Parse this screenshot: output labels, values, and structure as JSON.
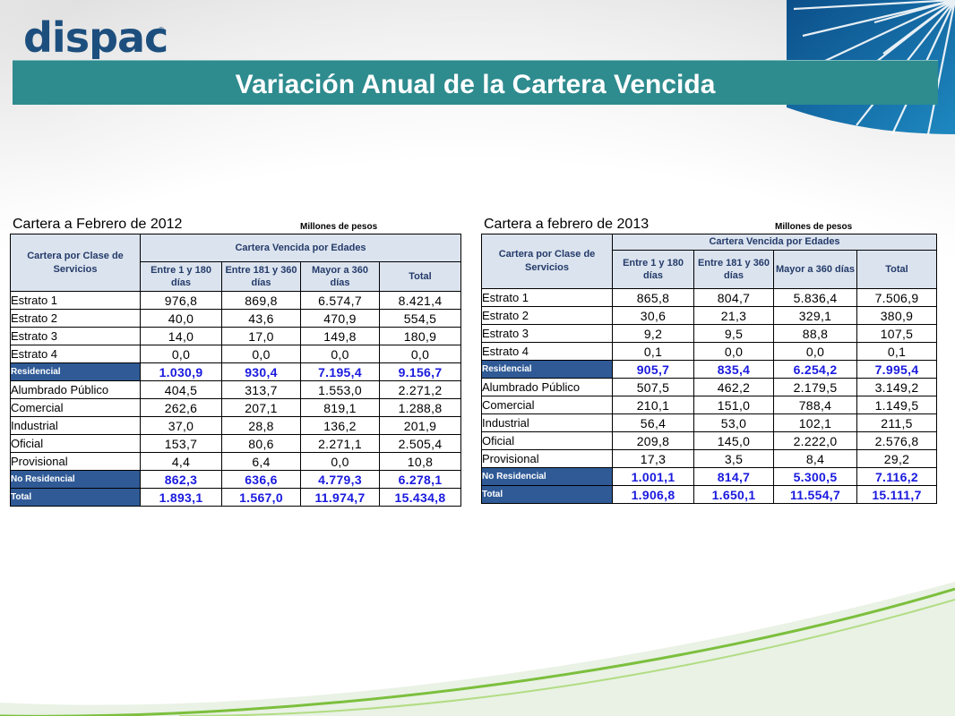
{
  "slide": {
    "title": "Variación Anual de la Cartera Vencida",
    "logo_text": "dispac",
    "logo_mark": "®"
  },
  "colors": {
    "accent_band": "#2e8b8e",
    "summary_row_bg": "#2f5a96",
    "header_bg": "#dbe3ee",
    "summary_number": "#1a1adf"
  },
  "tables": [
    {
      "title": "Cartera a Febrero de 2012",
      "unit": "Millones de pesos",
      "row_header": "Cartera por Clase de Servicios",
      "group_header": "Cartera Vencida por Edades",
      "columns": [
        "Entre 1 y 180 días",
        "Entre 181 y 360 días",
        "Mayor a 360 días",
        "Total"
      ],
      "rows": [
        {
          "label": "Estrato 1",
          "values": [
            "976,8",
            "869,8",
            "6.574,7",
            "8.421,4"
          ],
          "summary": false
        },
        {
          "label": "Estrato 2",
          "values": [
            "40,0",
            "43,6",
            "470,9",
            "554,5"
          ],
          "summary": false
        },
        {
          "label": "Estrato 3",
          "values": [
            "14,0",
            "17,0",
            "149,8",
            "180,9"
          ],
          "summary": false
        },
        {
          "label": "Estrato 4",
          "values": [
            "0,0",
            "0,0",
            "0,0",
            "0,0"
          ],
          "summary": false
        },
        {
          "label": "Residencial",
          "values": [
            "1.030,9",
            "930,4",
            "7.195,4",
            "9.156,7"
          ],
          "summary": true
        },
        {
          "label": "Alumbrado Público",
          "values": [
            "404,5",
            "313,7",
            "1.553,0",
            "2.271,2"
          ],
          "summary": false
        },
        {
          "label": "Comercial",
          "values": [
            "262,6",
            "207,1",
            "819,1",
            "1.288,8"
          ],
          "summary": false
        },
        {
          "label": "Industrial",
          "values": [
            "37,0",
            "28,8",
            "136,2",
            "201,9"
          ],
          "summary": false
        },
        {
          "label": "Oficial",
          "values": [
            "153,7",
            "80,6",
            "2.271,1",
            "2.505,4"
          ],
          "summary": false
        },
        {
          "label": "Provisional",
          "values": [
            "4,4",
            "6,4",
            "0,0",
            "10,8"
          ],
          "summary": false
        },
        {
          "label": "No Residencial",
          "values": [
            "862,3",
            "636,6",
            "4.779,3",
            "6.278,1"
          ],
          "summary": true
        },
        {
          "label": "Total",
          "values": [
            "1.893,1",
            "1.567,0",
            "11.974,7",
            "15.434,8"
          ],
          "summary": true
        }
      ]
    },
    {
      "title": "Cartera a febrero de 2013",
      "unit": "Millones de pesos",
      "row_header": "Cartera por Clase de Servicios",
      "group_header": "Cartera Vencida por Edades",
      "columns": [
        "Entre 1 y 180 días",
        "Entre 181 y 360 días",
        "Mayor a 360 días",
        "Total"
      ],
      "rows": [
        {
          "label": "Estrato 1",
          "values": [
            "865,8",
            "804,7",
            "5.836,4",
            "7.506,9"
          ],
          "summary": false
        },
        {
          "label": "Estrato 2",
          "values": [
            "30,6",
            "21,3",
            "329,1",
            "380,9"
          ],
          "summary": false
        },
        {
          "label": "Estrato 3",
          "values": [
            "9,2",
            "9,5",
            "88,8",
            "107,5"
          ],
          "summary": false
        },
        {
          "label": "Estrato 4",
          "values": [
            "0,1",
            "0,0",
            "0,0",
            "0,1"
          ],
          "summary": false
        },
        {
          "label": "Residencial",
          "values": [
            "905,7",
            "835,4",
            "6.254,2",
            "7.995,4"
          ],
          "summary": true
        },
        {
          "label": "Alumbrado Público",
          "values": [
            "507,5",
            "462,2",
            "2.179,5",
            "3.149,2"
          ],
          "summary": false
        },
        {
          "label": "Comercial",
          "values": [
            "210,1",
            "151,0",
            "788,4",
            "1.149,5"
          ],
          "summary": false
        },
        {
          "label": "Industrial",
          "values": [
            "56,4",
            "53,0",
            "102,1",
            "211,5"
          ],
          "summary": false
        },
        {
          "label": "Oficial",
          "values": [
            "209,8",
            "145,0",
            "2.222,0",
            "2.576,8"
          ],
          "summary": false
        },
        {
          "label": "Provisional",
          "values": [
            "17,3",
            "3,5",
            "8,4",
            "29,2"
          ],
          "summary": false
        },
        {
          "label": "No Residencial",
          "values": [
            "1.001,1",
            "814,7",
            "5.300,5",
            "7.116,2"
          ],
          "summary": true
        },
        {
          "label": "Total",
          "values": [
            "1.906,8",
            "1.650,1",
            "11.554,7",
            "15.111,7"
          ],
          "summary": true
        }
      ]
    }
  ]
}
